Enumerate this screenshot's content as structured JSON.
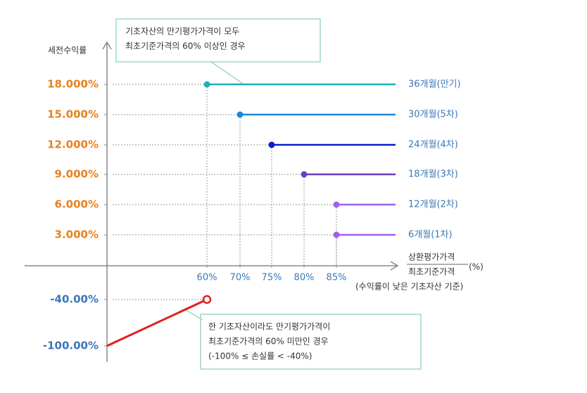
{
  "chart_data": {
    "type": "payoff",
    "y_label": "세전수익률",
    "x_label": [
      "상환평가가격",
      "최초기준가격",
      "(수익률이 낮은 기초자산 기준)"
    ],
    "x_unit": "(%)",
    "yticks": [
      {
        "value": 18,
        "label": "18.000%"
      },
      {
        "value": 15,
        "label": "15.000%"
      },
      {
        "value": 12,
        "label": "12.000%"
      },
      {
        "value": 9,
        "label": "9.000%"
      },
      {
        "value": 6,
        "label": "6.000%"
      },
      {
        "value": 3,
        "label": "3.000%"
      },
      {
        "value": -40,
        "label": "-40.00%"
      },
      {
        "value": -100,
        "label": "-100.00%"
      }
    ],
    "xticks": [
      {
        "value": 60,
        "label": "60%"
      },
      {
        "value": 70,
        "label": "70%"
      },
      {
        "value": 75,
        "label": "75%"
      },
      {
        "value": 80,
        "label": "80%"
      },
      {
        "value": 85,
        "label": "85%"
      }
    ],
    "series": [
      {
        "name": "36개월(만기)",
        "color": "#1ab0c0",
        "x": 60,
        "value": 18
      },
      {
        "name": "30개월(5차)",
        "color": "#1e88d8",
        "x": 70,
        "value": 15
      },
      {
        "name": "24개월(4차)",
        "color": "#0a1fc8",
        "x": 75,
        "value": 12
      },
      {
        "name": "18개월(3차)",
        "color": "#6a3fc0",
        "x": 80,
        "value": 9
      },
      {
        "name": "12개월(2차)",
        "color": "#a060f0",
        "x": 85,
        "value": 6
      },
      {
        "name": "6개월(1차)",
        "color": "#a060f0",
        "x": 85,
        "value": 3
      }
    ],
    "loss": {
      "color": "#e02020",
      "x": [
        0,
        60
      ],
      "values": [
        -100,
        -40
      ]
    },
    "annotations": [
      [
        "기초자산의 만기평가가격이 모두",
        "최초기준가격의 60% 이상인 경우"
      ],
      [
        "한 기초자산이라도 만기평가가격이",
        "최초기준가격의 60% 미만인 경우",
        "(-100% ≤ 손실률 < -40%)"
      ]
    ]
  }
}
